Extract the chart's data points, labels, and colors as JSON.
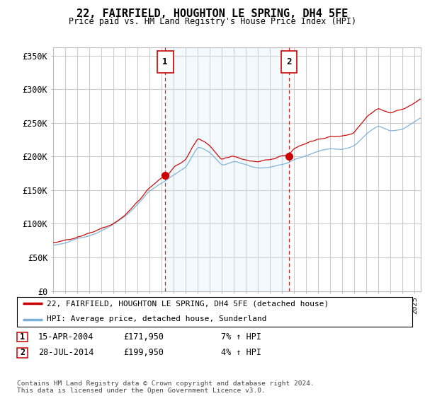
{
  "title": "22, FAIRFIELD, HOUGHTON LE SPRING, DH4 5FE",
  "subtitle": "Price paid vs. HM Land Registry's House Price Index (HPI)",
  "ylabel_ticks": [
    "£0",
    "£50K",
    "£100K",
    "£150K",
    "£200K",
    "£250K",
    "£300K",
    "£350K"
  ],
  "ytick_vals": [
    0,
    50000,
    100000,
    150000,
    200000,
    250000,
    300000,
    350000
  ],
  "ylim": [
    0,
    362000
  ],
  "xlim_start": 1995.0,
  "xlim_end": 2025.5,
  "marker1_x": 2004.29,
  "marker1_y": 171950,
  "marker2_x": 2014.57,
  "marker2_y": 199950,
  "vline1_x": 2004.29,
  "vline2_x": 2014.57,
  "legend_line1": "22, FAIRFIELD, HOUGHTON LE SPRING, DH4 5FE (detached house)",
  "legend_line2": "HPI: Average price, detached house, Sunderland",
  "table_row1": [
    "1",
    "15-APR-2004",
    "£171,950",
    "7% ↑ HPI"
  ],
  "table_row2": [
    "2",
    "28-JUL-2014",
    "£199,950",
    "4% ↑ HPI"
  ],
  "footer": "Contains HM Land Registry data © Crown copyright and database right 2024.\nThis data is licensed under the Open Government Licence v3.0.",
  "hpi_color": "#7ab0d4",
  "price_color": "#cc0000",
  "vline_color": "#cc0000",
  "shade_color": "#d0e8f5",
  "background_color": "#ffffff",
  "plot_bg_color": "#ffffff",
  "grid_color": "#cccccc"
}
